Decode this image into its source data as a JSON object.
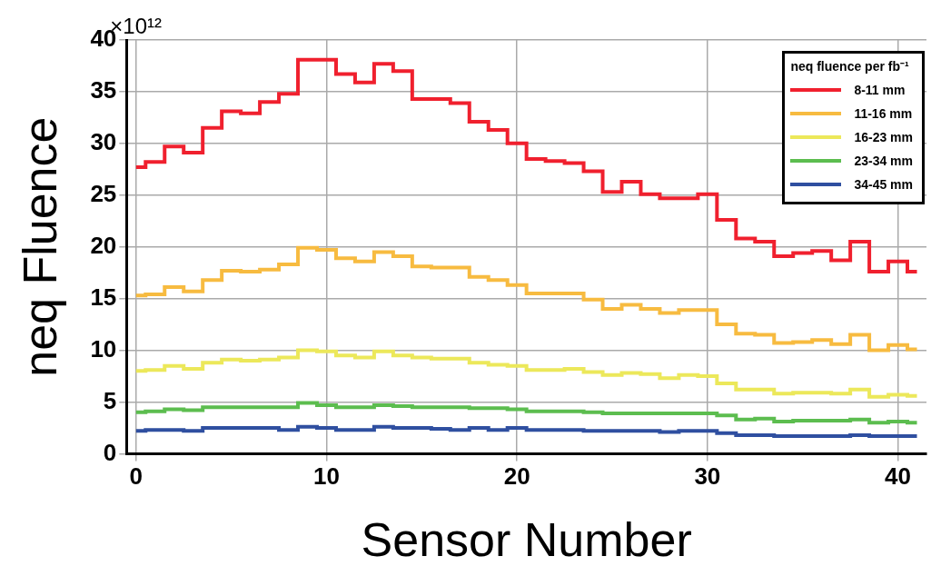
{
  "chart_data": {
    "type": "step",
    "xlabel": "Sensor Number",
    "ylabel": "neq Fluence",
    "legend_title": "neq fluence per fb⁻¹",
    "annotations": [
      "×10¹²"
    ],
    "x": [
      0,
      1,
      2,
      3,
      4,
      5,
      6,
      7,
      8,
      9,
      10,
      11,
      12,
      13,
      14,
      15,
      16,
      17,
      18,
      19,
      20,
      21,
      22,
      23,
      24,
      25,
      26,
      27,
      28,
      29,
      30,
      31,
      32,
      33,
      34,
      35,
      36,
      37,
      38,
      39,
      40,
      41
    ],
    "series": [
      {
        "name": "8-11 mm",
        "color": "#f0202e",
        "values": [
          27.7,
          28.2,
          29.7,
          29.1,
          31.5,
          33.1,
          32.9,
          34.0,
          34.8,
          38.1,
          38.1,
          36.7,
          35.9,
          37.7,
          37.0,
          34.3,
          34.3,
          33.9,
          32.1,
          31.3,
          30.0,
          28.5,
          28.3,
          28.1,
          27.3,
          25.3,
          26.3,
          25.1,
          24.7,
          24.7,
          25.1,
          22.6,
          20.8,
          20.5,
          19.1,
          19.4,
          19.6,
          18.7,
          20.5,
          17.6,
          18.6,
          17.6
        ]
      },
      {
        "name": "11-16 mm",
        "color": "#f7bb40",
        "values": [
          15.3,
          15.4,
          16.1,
          15.7,
          16.8,
          17.7,
          17.6,
          17.8,
          18.3,
          19.9,
          19.7,
          18.9,
          18.6,
          19.5,
          19.1,
          18.1,
          18.0,
          18.0,
          17.1,
          16.8,
          16.3,
          15.5,
          15.5,
          15.5,
          14.9,
          14.0,
          14.4,
          14.0,
          13.6,
          13.9,
          13.9,
          12.5,
          11.6,
          11.5,
          10.7,
          10.8,
          11.0,
          10.6,
          11.5,
          10.0,
          10.5,
          10.1
        ]
      },
      {
        "name": "16-23 mm",
        "color": "#ece85a",
        "values": [
          8.0,
          8.1,
          8.5,
          8.2,
          8.8,
          9.1,
          9.0,
          9.1,
          9.3,
          10.0,
          9.9,
          9.5,
          9.3,
          9.9,
          9.5,
          9.3,
          9.2,
          9.2,
          8.8,
          8.6,
          8.5,
          8.1,
          8.1,
          8.2,
          7.9,
          7.6,
          7.8,
          7.7,
          7.3,
          7.6,
          7.5,
          6.8,
          6.2,
          6.2,
          5.8,
          5.9,
          5.9,
          5.8,
          6.2,
          5.5,
          5.7,
          5.6
        ]
      },
      {
        "name": "23-34 mm",
        "color": "#5cbd4f",
        "values": [
          4.0,
          4.1,
          4.3,
          4.2,
          4.5,
          4.5,
          4.5,
          4.5,
          4.5,
          4.9,
          4.7,
          4.5,
          4.5,
          4.7,
          4.6,
          4.5,
          4.5,
          4.5,
          4.4,
          4.4,
          4.3,
          4.1,
          4.1,
          4.1,
          4.0,
          3.9,
          3.9,
          3.9,
          3.9,
          3.9,
          3.9,
          3.7,
          3.3,
          3.4,
          3.1,
          3.2,
          3.2,
          3.2,
          3.3,
          3.0,
          3.1,
          3.0
        ]
      },
      {
        "name": "34-45 mm",
        "color": "#2f4fa0",
        "values": [
          2.2,
          2.3,
          2.3,
          2.2,
          2.5,
          2.5,
          2.5,
          2.5,
          2.3,
          2.6,
          2.5,
          2.3,
          2.3,
          2.6,
          2.5,
          2.5,
          2.4,
          2.3,
          2.5,
          2.3,
          2.5,
          2.3,
          2.3,
          2.3,
          2.2,
          2.2,
          2.2,
          2.2,
          2.1,
          2.2,
          2.2,
          2.0,
          1.8,
          1.8,
          1.7,
          1.7,
          1.7,
          1.7,
          1.8,
          1.7,
          1.7,
          1.7
        ]
      }
    ],
    "xlim": [
      -0.5,
      41.5
    ],
    "xticks": [
      0,
      10,
      20,
      30,
      40
    ],
    "ylim": [
      0,
      40
    ],
    "yticks": [
      0,
      5,
      10,
      15,
      20,
      25,
      30,
      35,
      40
    ],
    "grid": true,
    "legend": "top right"
  }
}
